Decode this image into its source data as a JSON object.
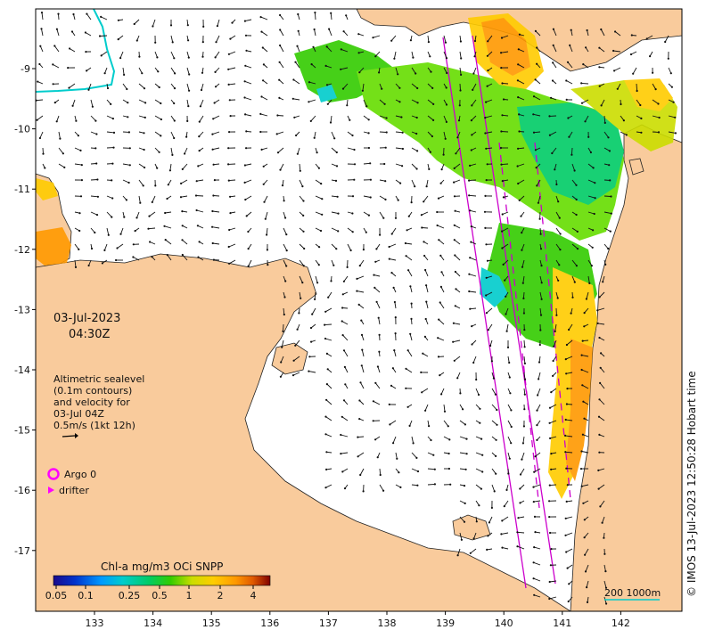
{
  "map": {
    "date_line": "03-Jul-2023",
    "time_line": "04:30Z",
    "altimetry_lines": [
      "Altimetric sealevel",
      "(0.1m contours)",
      "and velocity for",
      "03-Jul 04Z",
      "0.5m/s (1kt 12h)"
    ],
    "argo_label": "Argo 0",
    "drifter_label": "drifter",
    "colorbar_title": "Chl-a mg/m3 OCi SNPP",
    "colorbar_ticks": [
      "0.05",
      "0.1",
      "0.25",
      "0.5",
      "1",
      "2",
      "4"
    ],
    "scale_label": "200  1000m",
    "credit": "© IMOS 13-Jul-2023 12:50:28 Hobart time",
    "lon_ticks": [
      "133",
      "134",
      "135",
      "136",
      "137",
      "138",
      "139",
      "140",
      "141",
      "142"
    ],
    "lat_ticks": [
      "-9",
      "-10",
      "-11",
      "-12",
      "-13",
      "-14",
      "-15",
      "-16",
      "-17"
    ],
    "colors": {
      "land": "#f9cb9c",
      "sea": "#ffffff",
      "argo": "#ff00ff",
      "track": "#cc00cc",
      "isobath": "#00cccc"
    },
    "colorbar_gradient": [
      "#1a0a8c",
      "#0033cc",
      "#0099ff",
      "#00cccc",
      "#00cc66",
      "#33cc00",
      "#ccdd00",
      "#ffcc00",
      "#ff9900",
      "#e05a00",
      "#b31a00",
      "#800000"
    ]
  }
}
